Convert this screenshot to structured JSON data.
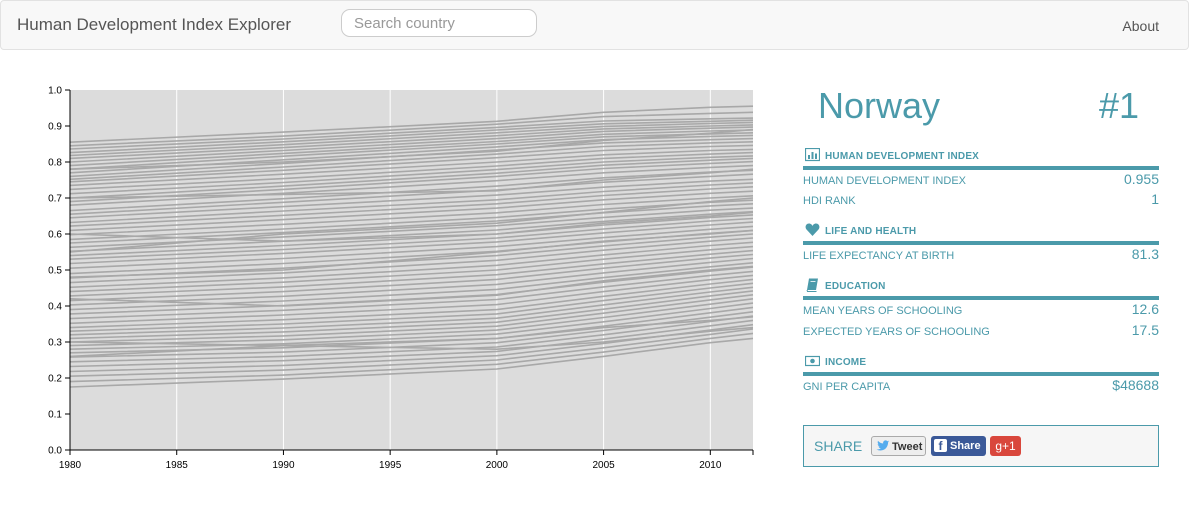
{
  "navbar": {
    "brand": "Human Development Index Explorer",
    "search_placeholder": "Search country",
    "about": "About"
  },
  "country": {
    "name": "Norway",
    "rank": "#1"
  },
  "sections": {
    "hdi": {
      "title": "HUMAN DEVELOPMENT INDEX",
      "icon": "bar-chart-icon",
      "rows": [
        {
          "label": "HUMAN DEVELOPMENT INDEX",
          "value": "0.955"
        },
        {
          "label": "HDI RANK",
          "value": "1"
        }
      ]
    },
    "health": {
      "title": "LIFE AND HEALTH",
      "icon": "heart-icon",
      "rows": [
        {
          "label": "LIFE EXPECTANCY AT BIRTH",
          "value": "81.3"
        }
      ]
    },
    "education": {
      "title": "EDUCATION",
      "icon": "book-icon",
      "rows": [
        {
          "label": "MEAN YEARS OF SCHOOLING",
          "value": "12.6"
        },
        {
          "label": "EXPECTED YEARS OF SCHOOLING",
          "value": "17.5"
        }
      ]
    },
    "income": {
      "title": "INCOME",
      "icon": "money-icon",
      "rows": [
        {
          "label": "GNI PER CAPITA",
          "value": "$48688"
        }
      ]
    }
  },
  "share": {
    "label": "SHARE",
    "tweet": "Tweet",
    "facebook": "Share",
    "gplus": "g+1"
  },
  "colors": {
    "accent": "#4b9aaa",
    "line": "#a8a8a8",
    "plot_bg": "#dcdcdc"
  },
  "chart_data": {
    "type": "line",
    "title": "",
    "xlabel": "",
    "ylabel": "",
    "xlim": [
      1980,
      2012
    ],
    "ylim": [
      0,
      1
    ],
    "x_ticks": [
      1980,
      1985,
      1990,
      1995,
      2000,
      2005,
      2010
    ],
    "y_ticks": [
      0.0,
      0.1,
      0.2,
      0.3,
      0.4,
      0.5,
      0.6,
      0.7,
      0.8,
      0.9,
      1.0
    ],
    "y_tick_labels": [
      "0.0",
      "0.1",
      "0.2",
      "0.3",
      "0.4",
      "0.5",
      "0.6",
      "0.7",
      "0.8",
      "0.9",
      "1.0"
    ],
    "grid": "vertical",
    "x": [
      1980,
      1990,
      2000,
      2005,
      2010,
      2012
    ],
    "series": [
      {
        "values": [
          0.855,
          0.883,
          0.913,
          0.938,
          0.952,
          0.955
        ]
      },
      {
        "values": [
          0.845,
          0.872,
          0.905,
          0.926,
          0.935,
          0.938
        ]
      },
      {
        "values": [
          0.836,
          0.864,
          0.896,
          0.914,
          0.92,
          0.922
        ]
      },
      {
        "values": [
          0.826,
          0.856,
          0.889,
          0.906,
          0.913,
          0.916
        ]
      },
      {
        "values": [
          0.818,
          0.848,
          0.881,
          0.899,
          0.907,
          0.91
        ]
      },
      {
        "values": [
          0.81,
          0.84,
          0.873,
          0.892,
          0.9,
          0.903
        ]
      },
      {
        "values": [
          0.8,
          0.832,
          0.865,
          0.885,
          0.894,
          0.897
        ]
      },
      {
        "values": [
          0.79,
          0.824,
          0.857,
          0.877,
          0.886,
          0.889
        ]
      },
      {
        "values": [
          0.78,
          0.816,
          0.85,
          0.87,
          0.878,
          0.881
        ]
      },
      {
        "values": [
          0.77,
          0.806,
          0.842,
          0.862,
          0.871,
          0.874
        ]
      },
      {
        "values": [
          0.76,
          0.796,
          0.833,
          0.853,
          0.862,
          0.865
        ]
      },
      {
        "values": [
          0.752,
          0.786,
          0.822,
          0.843,
          0.853,
          0.856
        ]
      },
      {
        "values": [
          0.745,
          0.777,
          0.812,
          0.832,
          0.843,
          0.846
        ]
      },
      {
        "values": [
          0.735,
          0.766,
          0.8,
          0.82,
          0.832,
          0.835
        ]
      },
      {
        "values": [
          0.724,
          0.754,
          0.789,
          0.81,
          0.822,
          0.826
        ]
      },
      {
        "values": [
          0.712,
          0.743,
          0.779,
          0.8,
          0.813,
          0.817
        ]
      },
      {
        "values": [
          0.7,
          0.733,
          0.769,
          0.791,
          0.805,
          0.81
        ]
      },
      {
        "values": [
          0.69,
          0.724,
          0.76,
          0.782,
          0.796,
          0.801
        ]
      },
      {
        "values": [
          0.68,
          0.713,
          0.748,
          0.77,
          0.785,
          0.79
        ]
      },
      {
        "values": [
          0.665,
          0.698,
          0.733,
          0.756,
          0.772,
          0.777
        ]
      },
      {
        "values": [
          0.655,
          0.688,
          0.722,
          0.744,
          0.76,
          0.766
        ]
      },
      {
        "values": [
          0.645,
          0.676,
          0.708,
          0.73,
          0.747,
          0.752
        ]
      },
      {
        "values": [
          0.632,
          0.664,
          0.695,
          0.718,
          0.736,
          0.742
        ]
      },
      {
        "values": [
          0.622,
          0.652,
          0.684,
          0.707,
          0.725,
          0.731
        ]
      },
      {
        "values": [
          0.61,
          0.64,
          0.672,
          0.695,
          0.713,
          0.719
        ]
      },
      {
        "values": [
          0.598,
          0.627,
          0.659,
          0.682,
          0.7,
          0.706
        ]
      },
      {
        "values": [
          0.585,
          0.614,
          0.646,
          0.669,
          0.688,
          0.694
        ]
      },
      {
        "values": [
          0.575,
          0.604,
          0.636,
          0.659,
          0.678,
          0.684
        ]
      },
      {
        "values": [
          0.563,
          0.592,
          0.623,
          0.646,
          0.666,
          0.672
        ]
      },
      {
        "values": [
          0.552,
          0.58,
          0.611,
          0.635,
          0.655,
          0.662
        ]
      },
      {
        "values": [
          0.54,
          0.568,
          0.6,
          0.625,
          0.646,
          0.653
        ]
      },
      {
        "values": [
          0.53,
          0.557,
          0.589,
          0.614,
          0.636,
          0.643
        ]
      },
      {
        "values": [
          0.518,
          0.546,
          0.578,
          0.603,
          0.625,
          0.633
        ]
      },
      {
        "values": [
          0.505,
          0.532,
          0.565,
          0.59,
          0.613,
          0.621
        ]
      },
      {
        "values": [
          0.49,
          0.518,
          0.552,
          0.578,
          0.602,
          0.61
        ]
      },
      {
        "values": [
          0.478,
          0.505,
          0.54,
          0.567,
          0.591,
          0.6
        ]
      },
      {
        "values": [
          0.465,
          0.492,
          0.527,
          0.555,
          0.58,
          0.589
        ]
      },
      {
        "values": [
          0.452,
          0.478,
          0.513,
          0.542,
          0.568,
          0.577
        ]
      },
      {
        "values": [
          0.44,
          0.466,
          0.5,
          0.53,
          0.556,
          0.565
        ]
      },
      {
        "values": [
          0.428,
          0.453,
          0.487,
          0.517,
          0.544,
          0.554
        ]
      },
      {
        "values": [
          0.415,
          0.44,
          0.474,
          0.505,
          0.533,
          0.543
        ]
      },
      {
        "values": [
          0.403,
          0.427,
          0.46,
          0.492,
          0.521,
          0.532
        ]
      },
      {
        "values": [
          0.39,
          0.414,
          0.446,
          0.479,
          0.509,
          0.52
        ]
      },
      {
        "values": [
          0.378,
          0.401,
          0.432,
          0.466,
          0.497,
          0.508
        ]
      },
      {
        "values": [
          0.365,
          0.388,
          0.418,
          0.453,
          0.485,
          0.496
        ]
      },
      {
        "values": [
          0.352,
          0.375,
          0.404,
          0.44,
          0.473,
          0.485
        ]
      },
      {
        "values": [
          0.34,
          0.362,
          0.39,
          0.427,
          0.461,
          0.474
        ]
      },
      {
        "values": [
          0.33,
          0.35,
          0.378,
          0.415,
          0.45,
          0.463
        ]
      },
      {
        "values": [
          0.32,
          0.339,
          0.366,
          0.403,
          0.439,
          0.452
        ]
      },
      {
        "values": [
          0.31,
          0.328,
          0.355,
          0.391,
          0.428,
          0.442
        ]
      },
      {
        "values": [
          0.3,
          0.317,
          0.344,
          0.38,
          0.417,
          0.431
        ]
      },
      {
        "values": [
          0.29,
          0.306,
          0.333,
          0.368,
          0.405,
          0.42
        ]
      },
      {
        "values": [
          0.28,
          0.295,
          0.322,
          0.356,
          0.393,
          0.408
        ]
      },
      {
        "values": [
          0.27,
          0.284,
          0.31,
          0.344,
          0.381,
          0.396
        ]
      },
      {
        "values": [
          0.258,
          0.272,
          0.298,
          0.332,
          0.369,
          0.384
        ]
      },
      {
        "values": [
          0.245,
          0.26,
          0.286,
          0.32,
          0.357,
          0.372
        ]
      },
      {
        "values": [
          0.232,
          0.248,
          0.274,
          0.308,
          0.345,
          0.36
        ]
      },
      {
        "values": [
          0.218,
          0.235,
          0.262,
          0.296,
          0.333,
          0.348
        ]
      },
      {
        "values": [
          0.205,
          0.222,
          0.25,
          0.284,
          0.321,
          0.336
        ]
      },
      {
        "values": [
          0.19,
          0.208,
          0.238,
          0.272,
          0.31,
          0.324
        ]
      },
      {
        "values": [
          0.175,
          0.197,
          0.225,
          0.26,
          0.298,
          0.31
        ]
      },
      {
        "values": [
          0.48,
          0.5,
          0.55,
          0.58,
          0.6,
          0.61
        ]
      },
      {
        "values": [
          0.7,
          0.71,
          0.72,
          0.75,
          0.77,
          0.78
        ]
      },
      {
        "values": [
          0.3,
          0.29,
          0.31,
          0.34,
          0.36,
          0.37
        ]
      },
      {
        "values": [
          0.26,
          0.29,
          0.28,
          0.3,
          0.33,
          0.34
        ]
      },
      {
        "values": [
          0.6,
          0.58,
          0.6,
          0.63,
          0.65,
          0.66
        ]
      },
      {
        "values": [
          0.42,
          0.4,
          0.43,
          0.47,
          0.5,
          0.51
        ]
      },
      {
        "values": [
          0.55,
          0.6,
          0.63,
          0.66,
          0.69,
          0.7
        ]
      },
      {
        "values": [
          0.78,
          0.8,
          0.83,
          0.86,
          0.88,
          0.89
        ]
      }
    ]
  }
}
